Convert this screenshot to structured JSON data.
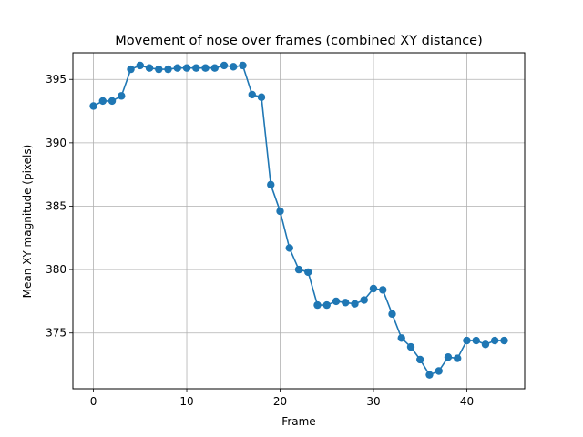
{
  "chart_data": {
    "type": "line",
    "title": "Movement of nose over frames (combined XY distance)",
    "xlabel": "Frame",
    "ylabel": "Mean XY magnitude (pixels)",
    "xlim": [
      -2.2,
      46.2
    ],
    "ylim": [
      370.6,
      397.1
    ],
    "xticks": [
      0,
      10,
      20,
      30,
      40
    ],
    "yticks": [
      375,
      380,
      385,
      390,
      395
    ],
    "grid": true,
    "color": "#1f77b4",
    "marker": "circle",
    "x": [
      0,
      1,
      2,
      3,
      4,
      5,
      6,
      7,
      8,
      9,
      10,
      11,
      12,
      13,
      14,
      15,
      16,
      17,
      18,
      19,
      20,
      21,
      22,
      23,
      24,
      25,
      26,
      27,
      28,
      29,
      30,
      31,
      32,
      33,
      34,
      35,
      36,
      37,
      38,
      39,
      40,
      41,
      42,
      43,
      44
    ],
    "y": [
      392.9,
      393.3,
      393.3,
      393.7,
      395.8,
      396.1,
      395.9,
      395.8,
      395.8,
      395.9,
      395.9,
      395.9,
      395.9,
      395.9,
      396.1,
      396.0,
      396.1,
      393.8,
      393.6,
      386.7,
      384.6,
      381.7,
      380.0,
      379.8,
      377.2,
      377.2,
      377.5,
      377.4,
      377.3,
      377.6,
      378.5,
      378.4,
      376.5,
      374.6,
      373.9,
      372.9,
      371.7,
      372.0,
      373.1,
      373.0,
      374.4,
      374.4,
      374.1,
      374.4,
      374.4
    ]
  }
}
